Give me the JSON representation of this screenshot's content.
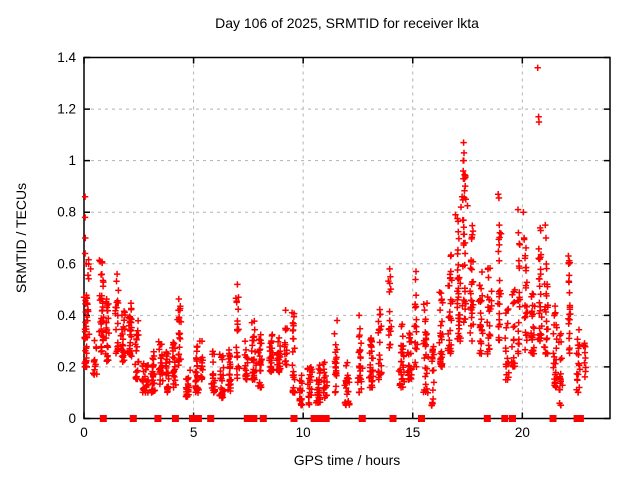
{
  "title": "Day 106 of 2025, SRMTID for receiver lkta",
  "axes": {
    "x": {
      "label": "GPS time / hours",
      "min": 0,
      "max": 24,
      "ticks": [
        0,
        5,
        10,
        15,
        20
      ],
      "tick_labels": [
        "0",
        "5",
        "10",
        "15",
        "20"
      ]
    },
    "y": {
      "label": "SRMTID / TECUs",
      "min": 0,
      "max": 1.4,
      "ticks": [
        0,
        0.2,
        0.4,
        0.6,
        0.8,
        1,
        1.2,
        1.4
      ],
      "tick_labels": [
        "0",
        "0.2",
        "0.4",
        "0.6",
        "0.8",
        "1",
        "1.2",
        "1.4"
      ],
      "grid_ticks": [
        0.2,
        0.4,
        0.6,
        0.8,
        1,
        1.2
      ]
    }
  },
  "style": {
    "marker_color": "#ff0000",
    "axis_color": "#000000",
    "grid_color": "#b3b3b3",
    "background": "#ffffff",
    "marker": "plus",
    "zero_marker": "filled-square"
  },
  "chart_data": {
    "type": "scatter",
    "title": "Day 106 of 2025, SRMTID for receiver lkta",
    "xlabel": "GPS time / hours",
    "ylabel": "SRMTID / TECUs",
    "xlim": [
      0,
      24
    ],
    "ylim": [
      0,
      1.4
    ],
    "grid": true,
    "legend": "none",
    "marker": "+",
    "series_name": "SRMTID",
    "seed": 7,
    "notable_points": [
      [
        0.05,
        0.86
      ],
      [
        0.05,
        0.78
      ],
      [
        0.06,
        0.7
      ],
      [
        0.05,
        0.64
      ],
      [
        0.1,
        0.6
      ],
      [
        0.3,
        0.58
      ],
      [
        7.0,
        0.52
      ],
      [
        7.05,
        0.47
      ],
      [
        9.2,
        0.42
      ],
      [
        11.55,
        0.38
      ],
      [
        12.55,
        0.4
      ],
      [
        13.95,
        0.58
      ],
      [
        13.98,
        0.55
      ],
      [
        15.15,
        0.57
      ],
      [
        16.95,
        0.79
      ],
      [
        17.2,
        0.82
      ],
      [
        17.25,
        0.86
      ],
      [
        17.3,
        1.0
      ],
      [
        17.3,
        0.96
      ],
      [
        17.31,
        0.93
      ],
      [
        17.32,
        1.07
      ],
      [
        17.33,
        1.0
      ],
      [
        17.34,
        1.03
      ],
      [
        17.36,
        0.945
      ],
      [
        17.42,
        0.85
      ],
      [
        17.5,
        0.825
      ],
      [
        18.9,
        0.87
      ],
      [
        18.93,
        0.855
      ],
      [
        18.95,
        0.75
      ],
      [
        18.97,
        0.72
      ],
      [
        19.8,
        0.81
      ],
      [
        19.82,
        0.72
      ],
      [
        20.05,
        0.8
      ],
      [
        20.08,
        0.7
      ],
      [
        20.7,
        1.36
      ],
      [
        20.74,
        1.17
      ],
      [
        20.76,
        1.15
      ],
      [
        21.05,
        0.75
      ],
      [
        21.08,
        0.7
      ],
      [
        22.1,
        0.63
      ],
      [
        22.12,
        0.6
      ]
    ],
    "zero_time_points": [
      0.88,
      2.25,
      3.37,
      4.17,
      4.95,
      5.1,
      5.22,
      5.78,
      7.45,
      7.75,
      8.18,
      9.58,
      10.5,
      10.68,
      10.9,
      11.05,
      12.7,
      14.1,
      15.4,
      18.4,
      19.2,
      19.55,
      21.4,
      22.5,
      22.65
    ],
    "cluster_columns": {
      "format": [
        "center_hour",
        "half_width_hours",
        "min_tecu",
        "max_tecu",
        "count"
      ],
      "columns": [
        [
          0.08,
          0.1,
          0.2,
          0.48,
          35
        ],
        [
          0.18,
          0.08,
          0.3,
          0.62,
          10
        ],
        [
          0.5,
          0.1,
          0.17,
          0.32,
          12
        ],
        [
          0.8,
          0.12,
          0.25,
          0.62,
          40
        ],
        [
          1.05,
          0.1,
          0.22,
          0.55,
          25
        ],
        [
          1.5,
          0.12,
          0.25,
          0.56,
          20
        ],
        [
          1.8,
          0.12,
          0.22,
          0.42,
          28
        ],
        [
          2.1,
          0.12,
          0.24,
          0.45,
          28
        ],
        [
          2.4,
          0.12,
          0.15,
          0.38,
          24
        ],
        [
          2.8,
          0.15,
          0.1,
          0.25,
          28
        ],
        [
          3.15,
          0.12,
          0.1,
          0.26,
          28
        ],
        [
          3.5,
          0.12,
          0.12,
          0.3,
          24
        ],
        [
          3.8,
          0.12,
          0.1,
          0.28,
          24
        ],
        [
          4.1,
          0.1,
          0.12,
          0.3,
          20
        ],
        [
          4.35,
          0.1,
          0.2,
          0.47,
          24
        ],
        [
          4.75,
          0.12,
          0.08,
          0.2,
          20
        ],
        [
          5.15,
          0.12,
          0.1,
          0.3,
          28
        ],
        [
          5.35,
          0.08,
          0.15,
          0.4,
          14
        ],
        [
          5.9,
          0.12,
          0.1,
          0.28,
          20
        ],
        [
          6.3,
          0.15,
          0.08,
          0.25,
          24
        ],
        [
          6.65,
          0.12,
          0.1,
          0.28,
          24
        ],
        [
          7.0,
          0.1,
          0.15,
          0.47,
          18
        ],
        [
          7.4,
          0.1,
          0.15,
          0.3,
          18
        ],
        [
          7.75,
          0.12,
          0.15,
          0.38,
          28
        ],
        [
          8.05,
          0.1,
          0.12,
          0.33,
          24
        ],
        [
          8.55,
          0.15,
          0.18,
          0.33,
          28
        ],
        [
          8.9,
          0.12,
          0.18,
          0.33,
          24
        ],
        [
          9.2,
          0.08,
          0.2,
          0.4,
          14
        ],
        [
          9.55,
          0.08,
          0.1,
          0.42,
          24
        ],
        [
          9.9,
          0.1,
          0.05,
          0.18,
          18
        ],
        [
          10.3,
          0.12,
          0.05,
          0.2,
          24
        ],
        [
          10.7,
          0.12,
          0.06,
          0.22,
          28
        ],
        [
          11.0,
          0.1,
          0.08,
          0.25,
          18
        ],
        [
          11.5,
          0.12,
          0.1,
          0.35,
          20
        ],
        [
          12.0,
          0.15,
          0.05,
          0.22,
          24
        ],
        [
          12.6,
          0.12,
          0.1,
          0.4,
          24
        ],
        [
          13.1,
          0.15,
          0.12,
          0.35,
          28
        ],
        [
          13.5,
          0.12,
          0.15,
          0.45,
          24
        ],
        [
          13.95,
          0.08,
          0.2,
          0.56,
          14
        ],
        [
          14.5,
          0.15,
          0.12,
          0.38,
          28
        ],
        [
          14.85,
          0.1,
          0.15,
          0.35,
          24
        ],
        [
          15.15,
          0.1,
          0.2,
          0.55,
          18
        ],
        [
          15.6,
          0.12,
          0.1,
          0.45,
          28
        ],
        [
          15.9,
          0.1,
          0.05,
          0.3,
          18
        ],
        [
          16.3,
          0.12,
          0.2,
          0.5,
          28
        ],
        [
          16.7,
          0.12,
          0.25,
          0.65,
          28
        ],
        [
          17.1,
          0.1,
          0.3,
          0.8,
          32
        ],
        [
          17.35,
          0.1,
          0.35,
          0.95,
          28
        ],
        [
          17.7,
          0.12,
          0.3,
          0.75,
          28
        ],
        [
          18.1,
          0.12,
          0.25,
          0.6,
          24
        ],
        [
          18.5,
          0.12,
          0.25,
          0.6,
          24
        ],
        [
          18.95,
          0.1,
          0.3,
          0.75,
          22
        ],
        [
          19.3,
          0.1,
          0.15,
          0.5,
          18
        ],
        [
          19.6,
          0.1,
          0.2,
          0.55,
          18
        ],
        [
          19.85,
          0.08,
          0.25,
          0.7,
          18
        ],
        [
          20.15,
          0.1,
          0.25,
          0.7,
          22
        ],
        [
          20.5,
          0.12,
          0.25,
          0.55,
          24
        ],
        [
          20.8,
          0.1,
          0.3,
          0.75,
          28
        ],
        [
          21.1,
          0.12,
          0.25,
          0.6,
          24
        ],
        [
          21.5,
          0.12,
          0.12,
          0.45,
          28
        ],
        [
          21.75,
          0.1,
          0.05,
          0.35,
          18
        ],
        [
          22.15,
          0.08,
          0.25,
          0.62,
          22
        ],
        [
          22.55,
          0.1,
          0.1,
          0.35,
          18
        ],
        [
          22.85,
          0.08,
          0.15,
          0.3,
          10
        ]
      ]
    }
  }
}
